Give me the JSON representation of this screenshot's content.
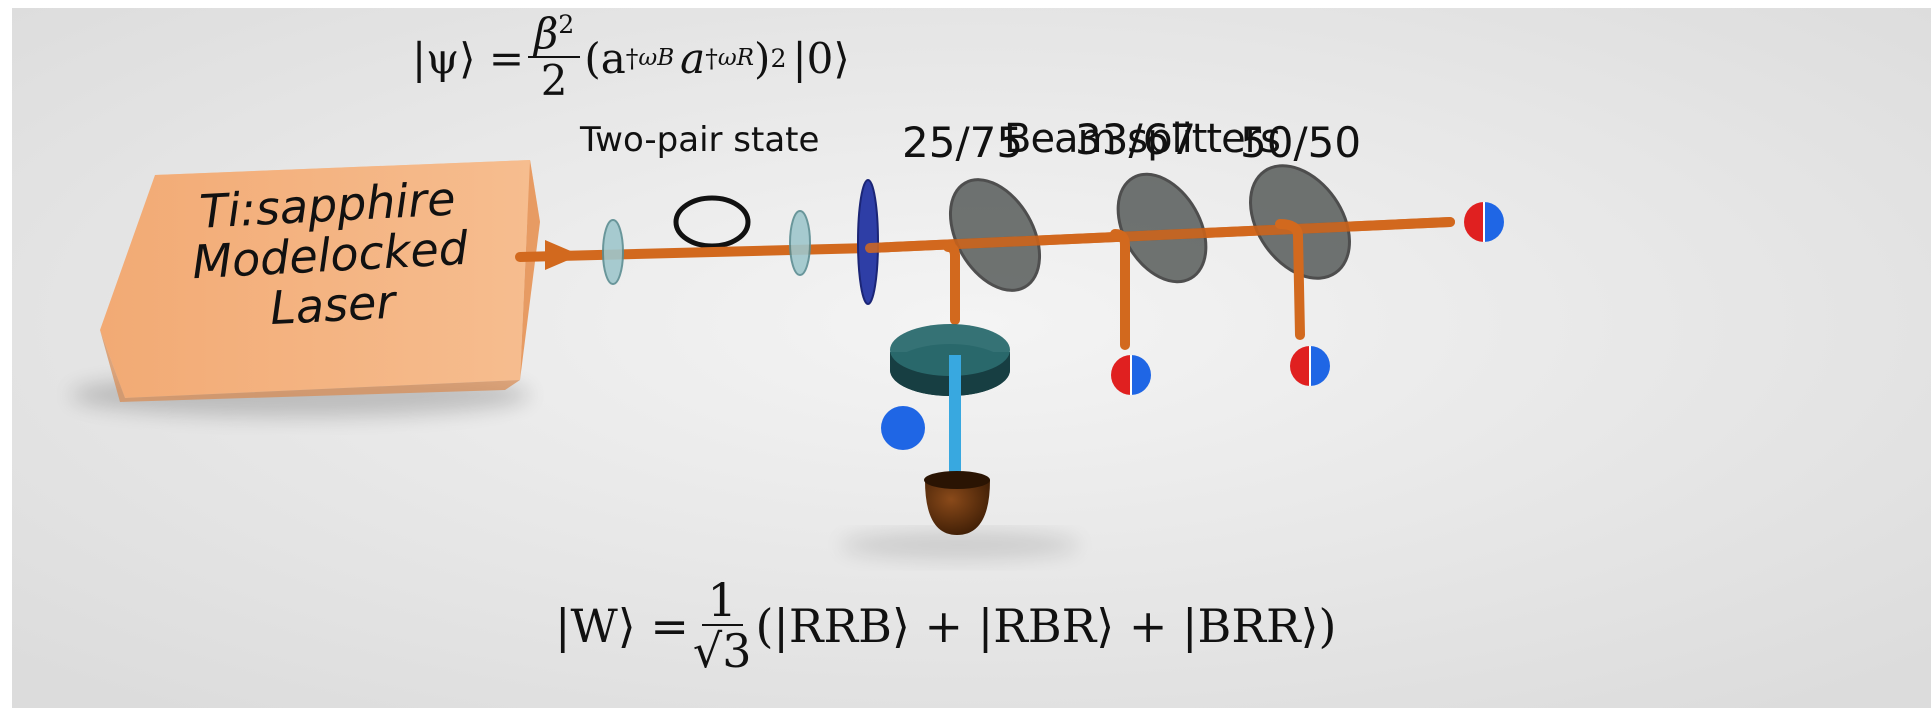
{
  "laser": {
    "line1": "Ti:sapphire",
    "line2": "Modelocked",
    "line3": "Laser"
  },
  "labels": {
    "two_pair_state": "Two-pair state",
    "bs_25_75": "25/75",
    "beam_splitters": "Beam splitters",
    "bs_33_67": "33/67",
    "bs_50_50": "50/50"
  },
  "equation_psi": {
    "lhs": "|ψ⟩ =",
    "frac_num": "β",
    "frac_num_sup": "2",
    "frac_den": "2",
    "open": "(a",
    "dagger": "†",
    "sub_b": "ωB",
    "a2": "a",
    "sub_r": "ωR",
    "close": ")",
    "power": "2",
    "ket0": " |0⟩"
  },
  "equation_w": {
    "lhs": "|W⟩ =",
    "frac_num": "1",
    "frac_den": "√3",
    "rhs": "(|RRB⟩ + |RBR⟩ + |BRR⟩)"
  },
  "colors": {
    "beam": "#d2691e",
    "laser_box": "#f6b98a",
    "photon_red": "#e02020",
    "photon_blue": "#1f66e5",
    "filter_teal": "#1f5b5f",
    "detector": "#5a2c0a",
    "blue_beam": "#38a8e0"
  }
}
